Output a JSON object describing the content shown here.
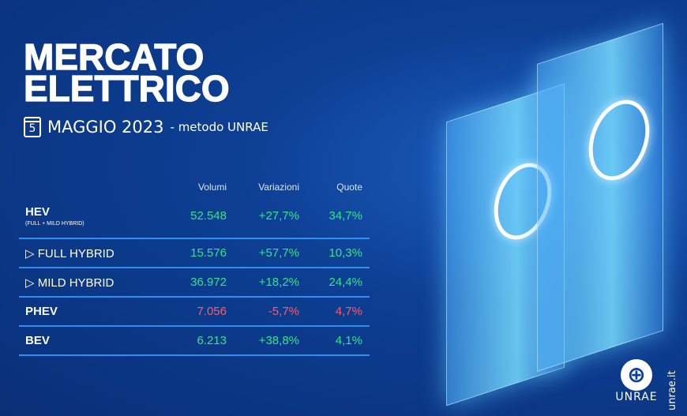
{
  "title": [
    "MERCATO",
    "ELETTRICO"
  ],
  "calendar_day": "5",
  "period": "MAGGIO 2023",
  "method": "- metodo UNRAE",
  "table": {
    "headers": [
      "Volumi",
      "Variazioni",
      "Quote"
    ],
    "rows": [
      {
        "label": "HEV",
        "sublabel": "(FULL + MILD HYBRID)",
        "volumi": "52.548",
        "variazioni": "+27,7%",
        "quote": "34,7%"
      },
      {
        "label": "▷  FULL HYBRID",
        "volumi": "15.576",
        "variazioni": "+57,7%",
        "quote": "10,3%"
      },
      {
        "label": "▷  MILD HYBRID",
        "volumi": "36.972",
        "variazioni": "+18,2%",
        "quote": "24,4%"
      },
      {
        "label": "PHEV",
        "volumi": "7.056",
        "variazioni": "-5,7%",
        "quote": "4,7%"
      },
      {
        "label": "BEV",
        "volumi": "6.213",
        "variazioni": "+38,8%",
        "quote": "4,1%"
      }
    ]
  },
  "logo": {
    "text": "UNRAE",
    "url": "unrae.it"
  },
  "colors": {
    "positive": "#33e38a",
    "negative": "#ff5a6a",
    "line": "#2f8ff0"
  }
}
